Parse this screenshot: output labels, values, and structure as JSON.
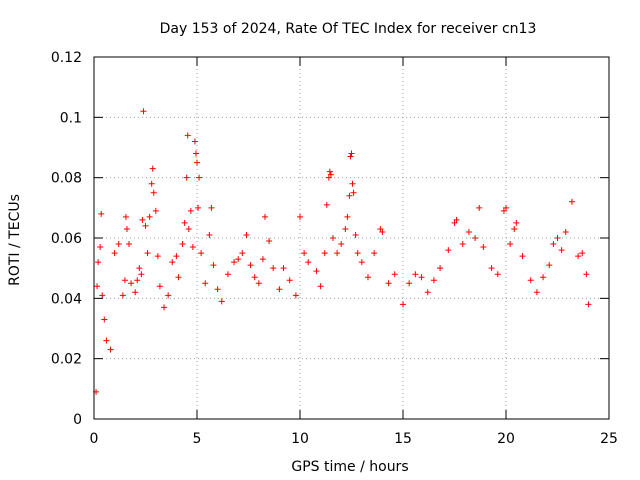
{
  "chart_data": {
    "type": "scatter",
    "title": "Day 153 of 2024, Rate Of TEC Index for receiver cn13",
    "xlabel": "GPS time / hours",
    "ylabel": "ROTI / TECUs",
    "xlim": [
      0,
      25
    ],
    "ylim": [
      0,
      0.12
    ],
    "x_ticks": [
      0,
      5,
      10,
      15,
      20,
      25
    ],
    "x_tick_labels": [
      "0",
      "5",
      "10",
      "15",
      "20",
      "25"
    ],
    "y_ticks": [
      0,
      0.02,
      0.04,
      0.06,
      0.08,
      0.1,
      0.12
    ],
    "y_tick_labels": [
      "0",
      "0.02",
      "0.04",
      "0.06",
      "0.08",
      "0.1",
      "0.12"
    ],
    "grid": true,
    "marker": "+",
    "color": "#ff0000",
    "series": [
      {
        "name": "ROTI",
        "points": [
          [
            0.1,
            0.009
          ],
          [
            0.15,
            0.044
          ],
          [
            0.2,
            0.052
          ],
          [
            0.3,
            0.057
          ],
          [
            0.35,
            0.068
          ],
          [
            0.4,
            0.041
          ],
          [
            0.5,
            0.033
          ],
          [
            0.6,
            0.026
          ],
          [
            0.8,
            0.023
          ],
          [
            1.0,
            0.055
          ],
          [
            1.2,
            0.058
          ],
          [
            1.4,
            0.041
          ],
          [
            1.5,
            0.046
          ],
          [
            1.55,
            0.067
          ],
          [
            1.6,
            0.063
          ],
          [
            1.7,
            0.058
          ],
          [
            1.8,
            0.045
          ],
          [
            2.0,
            0.042
          ],
          [
            2.1,
            0.046
          ],
          [
            2.2,
            0.05
          ],
          [
            2.3,
            0.048
          ],
          [
            2.35,
            0.066
          ],
          [
            2.4,
            0.102
          ],
          [
            2.5,
            0.064
          ],
          [
            2.6,
            0.055
          ],
          [
            2.7,
            0.067
          ],
          [
            2.8,
            0.078
          ],
          [
            2.85,
            0.083
          ],
          [
            2.9,
            0.075
          ],
          [
            3.0,
            0.069
          ],
          [
            3.1,
            0.054
          ],
          [
            3.2,
            0.044
          ],
          [
            3.4,
            0.037
          ],
          [
            3.6,
            0.041
          ],
          [
            3.8,
            0.052
          ],
          [
            4.0,
            0.054
          ],
          [
            4.1,
            0.047
          ],
          [
            4.3,
            0.058
          ],
          [
            4.4,
            0.065
          ],
          [
            4.5,
            0.08
          ],
          [
            4.55,
            0.094
          ],
          [
            4.6,
            0.063
          ],
          [
            4.7,
            0.069
          ],
          [
            4.8,
            0.057
          ],
          [
            4.9,
            0.092
          ],
          [
            4.95,
            0.088
          ],
          [
            5.0,
            0.085
          ],
          [
            5.05,
            0.07
          ],
          [
            5.1,
            0.08
          ],
          [
            5.2,
            0.055
          ],
          [
            5.4,
            0.045
          ],
          [
            5.6,
            0.061
          ],
          [
            5.7,
            0.07
          ],
          [
            5.8,
            0.051
          ],
          [
            6.0,
            0.043
          ],
          [
            6.2,
            0.039
          ],
          [
            6.5,
            0.048
          ],
          [
            6.8,
            0.052
          ],
          [
            7.0,
            0.053
          ],
          [
            7.2,
            0.055
          ],
          [
            7.4,
            0.061
          ],
          [
            7.6,
            0.051
          ],
          [
            7.8,
            0.047
          ],
          [
            8.0,
            0.045
          ],
          [
            8.2,
            0.053
          ],
          [
            8.3,
            0.067
          ],
          [
            8.5,
            0.059
          ],
          [
            8.7,
            0.05
          ],
          [
            9.0,
            0.043
          ],
          [
            9.2,
            0.05
          ],
          [
            9.5,
            0.046
          ],
          [
            9.8,
            0.041
          ],
          [
            10.0,
            0.067
          ],
          [
            10.2,
            0.055
          ],
          [
            10.4,
            0.052
          ],
          [
            10.8,
            0.049
          ],
          [
            11.0,
            0.044
          ],
          [
            11.2,
            0.055
          ],
          [
            11.3,
            0.071
          ],
          [
            11.4,
            0.08
          ],
          [
            11.45,
            0.082
          ],
          [
            11.5,
            0.081
          ],
          [
            11.6,
            0.06
          ],
          [
            11.8,
            0.055
          ],
          [
            12.0,
            0.058
          ],
          [
            12.2,
            0.063
          ],
          [
            12.3,
            0.067
          ],
          [
            12.4,
            0.074
          ],
          [
            12.45,
            0.087
          ],
          [
            12.5,
            0.088
          ],
          [
            12.55,
            0.078
          ],
          [
            12.6,
            0.075
          ],
          [
            12.7,
            0.061
          ],
          [
            12.8,
            0.055
          ],
          [
            13.0,
            0.052
          ],
          [
            13.3,
            0.047
          ],
          [
            13.6,
            0.055
          ],
          [
            13.9,
            0.063
          ],
          [
            14.0,
            0.062
          ],
          [
            14.3,
            0.045
          ],
          [
            14.6,
            0.048
          ],
          [
            15.0,
            0.038
          ],
          [
            15.3,
            0.045
          ],
          [
            15.6,
            0.048
          ],
          [
            15.9,
            0.047
          ],
          [
            16.2,
            0.042
          ],
          [
            16.5,
            0.046
          ],
          [
            16.8,
            0.05
          ],
          [
            17.2,
            0.056
          ],
          [
            17.5,
            0.065
          ],
          [
            17.6,
            0.066
          ],
          [
            17.9,
            0.058
          ],
          [
            18.2,
            0.062
          ],
          [
            18.5,
            0.06
          ],
          [
            18.7,
            0.07
          ],
          [
            18.9,
            0.057
          ],
          [
            19.3,
            0.05
          ],
          [
            19.6,
            0.048
          ],
          [
            19.9,
            0.069
          ],
          [
            20.0,
            0.07
          ],
          [
            20.2,
            0.058
          ],
          [
            20.4,
            0.063
          ],
          [
            20.5,
            0.065
          ],
          [
            20.8,
            0.054
          ],
          [
            21.2,
            0.046
          ],
          [
            21.5,
            0.042
          ],
          [
            21.8,
            0.047
          ],
          [
            22.1,
            0.051
          ],
          [
            22.3,
            0.058
          ],
          [
            22.5,
            0.06
          ],
          [
            22.7,
            0.056
          ],
          [
            22.9,
            0.062
          ],
          [
            23.2,
            0.072
          ],
          [
            23.5,
            0.054
          ],
          [
            23.7,
            0.055
          ],
          [
            23.9,
            0.048
          ],
          [
            24.0,
            0.038
          ]
        ]
      }
    ]
  }
}
